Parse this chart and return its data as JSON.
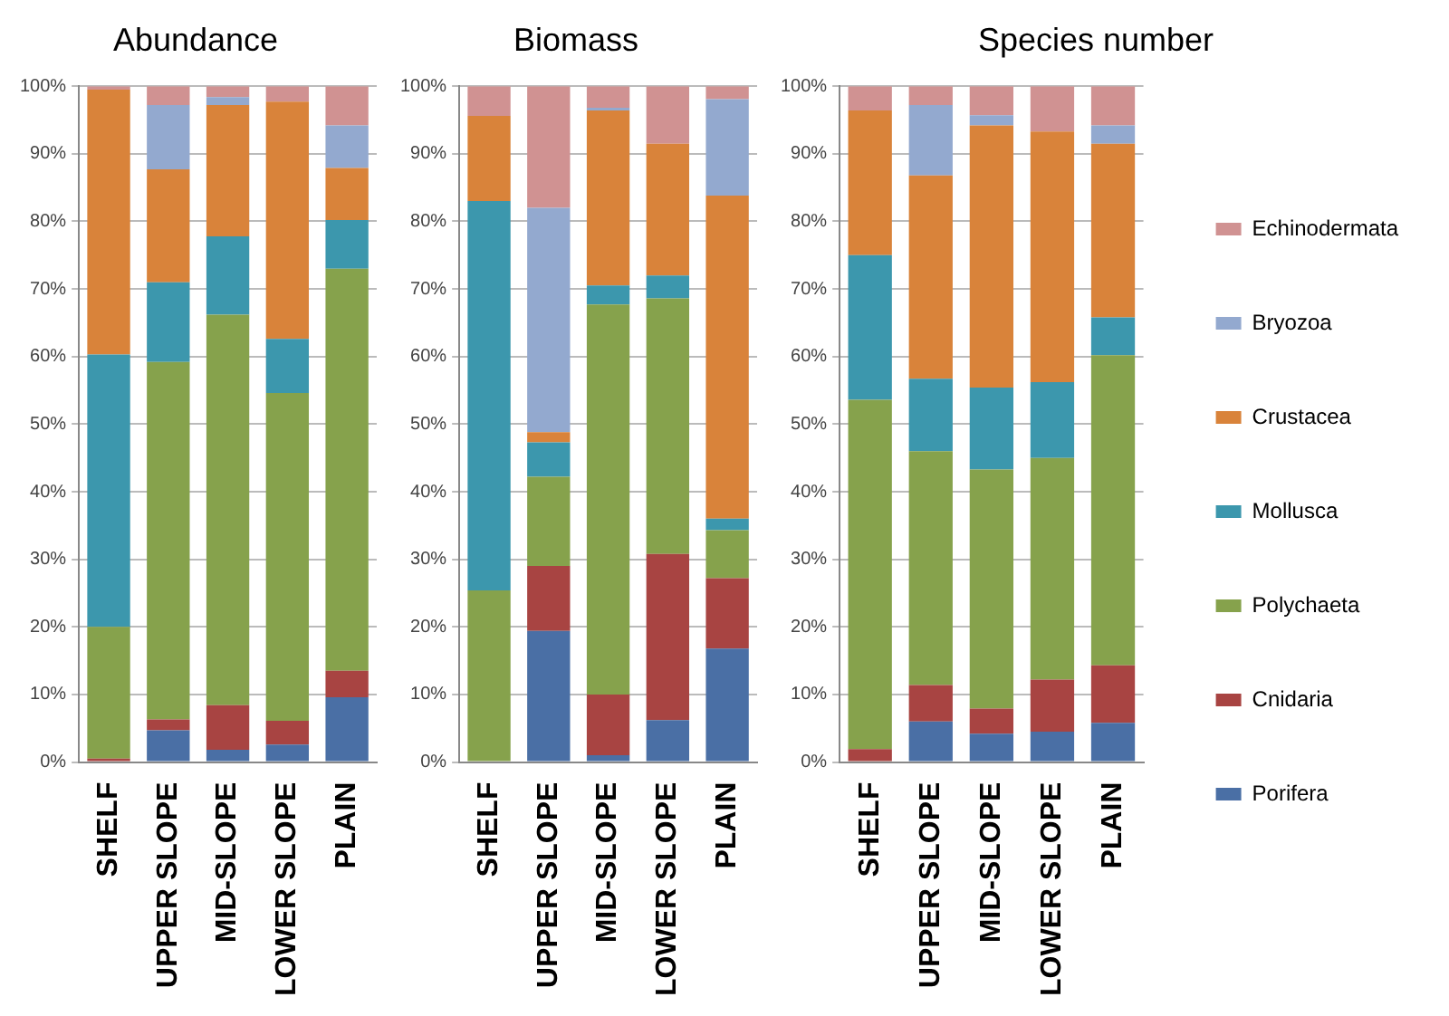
{
  "chart_data": [
    {
      "type": "bar",
      "title": "Abundance",
      "stacked": true,
      "grid": "y",
      "categories": [
        "SHELF",
        "UPPER SLOPE",
        "MID-SLOPE",
        "LOWER SLOPE",
        "PLAIN"
      ],
      "ylim": [
        0,
        100
      ],
      "yticks": [
        {
          "value": 0,
          "label": "0%"
        },
        {
          "value": 10,
          "label": "10%"
        },
        {
          "value": 20,
          "label": "20%"
        },
        {
          "value": 30,
          "label": "30%"
        },
        {
          "value": 40,
          "label": "40%"
        },
        {
          "value": 50,
          "label": "50%"
        },
        {
          "value": 60,
          "label": "60%"
        },
        {
          "value": 70,
          "label": "70%"
        },
        {
          "value": 80,
          "label": "80%"
        },
        {
          "value": 90,
          "label": "90%"
        },
        {
          "value": 100,
          "label": "100%"
        }
      ],
      "series": [
        {
          "color": "#4a6fa5",
          "values": [
            0,
            4.7,
            1.8,
            2.6,
            9.6
          ]
        },
        {
          "color": "#a84442",
          "values": [
            0.5,
            1.6,
            6.6,
            3.5,
            3.9
          ]
        },
        {
          "color": "#86a24c",
          "values": [
            19.5,
            52.9,
            57.8,
            48.5,
            59.5
          ]
        },
        {
          "color": "#3c97ad",
          "values": [
            40.3,
            11.8,
            11.6,
            8,
            7.2
          ]
        },
        {
          "color": "#d9833a",
          "values": [
            39.2,
            16.7,
            19.4,
            35.1,
            7.7
          ]
        },
        {
          "color": "#93a9cf",
          "values": [
            0,
            9.5,
            1.2,
            0,
            6.3
          ]
        },
        {
          "color": "#d09292",
          "values": [
            0.5,
            2.8,
            1.6,
            2.3,
            5.8
          ]
        }
      ]
    },
    {
      "type": "bar",
      "title": "Biomass",
      "stacked": true,
      "grid": "y",
      "categories": [
        "SHELF",
        "UPPER SLOPE",
        "MID-SLOPE",
        "LOWER SLOPE",
        "PLAIN"
      ],
      "ylim": [
        0,
        100
      ],
      "yticks": [
        {
          "value": 0,
          "label": "0%"
        },
        {
          "value": 10,
          "label": "10%"
        },
        {
          "value": 20,
          "label": "20%"
        },
        {
          "value": 30,
          "label": "30%"
        },
        {
          "value": 40,
          "label": "40%"
        },
        {
          "value": 50,
          "label": "50%"
        },
        {
          "value": 60,
          "label": "60%"
        },
        {
          "value": 70,
          "label": "70%"
        },
        {
          "value": 80,
          "label": "80%"
        },
        {
          "value": 90,
          "label": "90%"
        },
        {
          "value": 100,
          "label": "100%"
        }
      ],
      "series": [
        {
          "color": "#4a6fa5",
          "values": [
            0,
            19.4,
            1,
            6.2,
            16.8
          ]
        },
        {
          "color": "#a84442",
          "values": [
            0,
            9.6,
            9,
            24.6,
            10.4
          ]
        },
        {
          "color": "#86a24c",
          "values": [
            25.4,
            13.2,
            57.7,
            37.8,
            7.1
          ]
        },
        {
          "color": "#3c97ad",
          "values": [
            57.6,
            5.1,
            2.8,
            3.4,
            1.7
          ]
        },
        {
          "color": "#d9833a",
          "values": [
            12.6,
            1.5,
            25.9,
            19.5,
            47.8
          ]
        },
        {
          "color": "#93a9cf",
          "values": [
            0,
            33.2,
            0.4,
            0,
            14.3
          ]
        },
        {
          "color": "#d09292",
          "values": [
            4.4,
            18,
            3.2,
            8.5,
            1.9
          ]
        }
      ]
    },
    {
      "type": "bar",
      "title": "Species number",
      "stacked": true,
      "grid": "y",
      "legend": "right",
      "categories": [
        "SHELF",
        "UPPER SLOPE",
        "MID-SLOPE",
        "LOWER SLOPE",
        "PLAIN"
      ],
      "ylim": [
        0,
        100
      ],
      "yticks": [
        {
          "value": 0,
          "label": "0%"
        },
        {
          "value": 10,
          "label": "10%"
        },
        {
          "value": 20,
          "label": "20%"
        },
        {
          "value": 30,
          "label": "30%"
        },
        {
          "value": 40,
          "label": "40%"
        },
        {
          "value": 50,
          "label": "50%"
        },
        {
          "value": 60,
          "label": "60%"
        },
        {
          "value": 70,
          "label": "70%"
        },
        {
          "value": 80,
          "label": "80%"
        },
        {
          "value": 90,
          "label": "90%"
        },
        {
          "value": 100,
          "label": "100%"
        }
      ],
      "series": [
        {
          "name": "Porifera",
          "color": "#4a6fa5",
          "values": [
            0,
            6,
            4.2,
            4.5,
            5.8
          ]
        },
        {
          "name": "Cnidaria",
          "color": "#a84442",
          "values": [
            1.9,
            5.4,
            3.7,
            7.7,
            8.5
          ]
        },
        {
          "name": "Polychaeta",
          "color": "#86a24c",
          "values": [
            51.7,
            34.6,
            35.4,
            32.8,
            45.9
          ]
        },
        {
          "name": "Mollusca",
          "color": "#3c97ad",
          "values": [
            21.4,
            10.7,
            12.1,
            11.2,
            5.6
          ]
        },
        {
          "name": "Crustacea",
          "color": "#d9833a",
          "values": [
            21.4,
            30.1,
            38.8,
            37.1,
            25.7
          ]
        },
        {
          "name": "Bryozoa",
          "color": "#93a9cf",
          "values": [
            0,
            10.4,
            1.5,
            0,
            2.7
          ]
        },
        {
          "name": "Echinodermata",
          "color": "#d09292",
          "values": [
            3.6,
            2.8,
            4.3,
            6.7,
            5.8
          ]
        }
      ]
    }
  ]
}
